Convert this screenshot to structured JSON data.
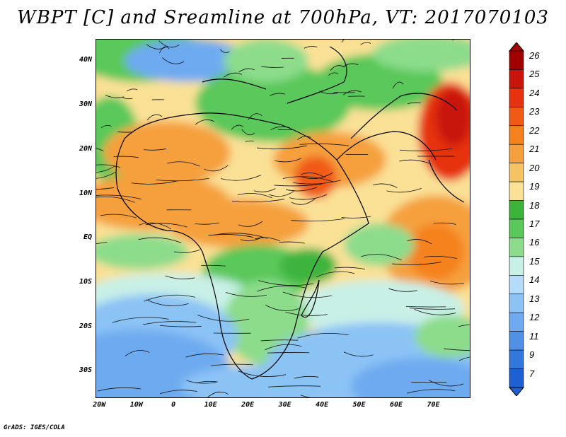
{
  "title": "WBPT [C] and Sreamline at 700hPa, VT: 2017070103",
  "footer": "GrADS: IGES/COLA",
  "map": {
    "lat_ticks": [
      "40N",
      "30N",
      "20N",
      "10N",
      "EQ",
      "10S",
      "20S",
      "30S"
    ],
    "lon_ticks": [
      "20W",
      "10W",
      "0",
      "10E",
      "20E",
      "30E",
      "40E",
      "50E",
      "60E",
      "70E"
    ],
    "lat_values": [
      40,
      30,
      20,
      10,
      0,
      -10,
      -20,
      -30
    ],
    "lon_values": [
      -20,
      -10,
      0,
      10,
      20,
      30,
      40,
      50,
      60,
      70
    ],
    "lon_range": [
      -21,
      80
    ],
    "lat_range": [
      -36,
      45
    ],
    "field": "wet-bulb potential temperature",
    "overlay": "streamlines"
  },
  "colorbar": {
    "levels": [
      "26",
      "25",
      "24",
      "23",
      "22",
      "21",
      "20",
      "19",
      "18",
      "17",
      "16",
      "15",
      "14",
      "13",
      "12",
      "11",
      "9",
      "7"
    ],
    "colors": [
      "#a00000",
      "#c8140a",
      "#e6320f",
      "#f05a14",
      "#f5821e",
      "#f5a03c",
      "#f5c364",
      "#fae196",
      "#3cb43c",
      "#5ac85a",
      "#8cdc8c",
      "#c8f0e6",
      "#b4dcfa",
      "#8cc3f5",
      "#6eaaf0",
      "#5091e6",
      "#3278dc",
      "#1e5fd2"
    ]
  }
}
